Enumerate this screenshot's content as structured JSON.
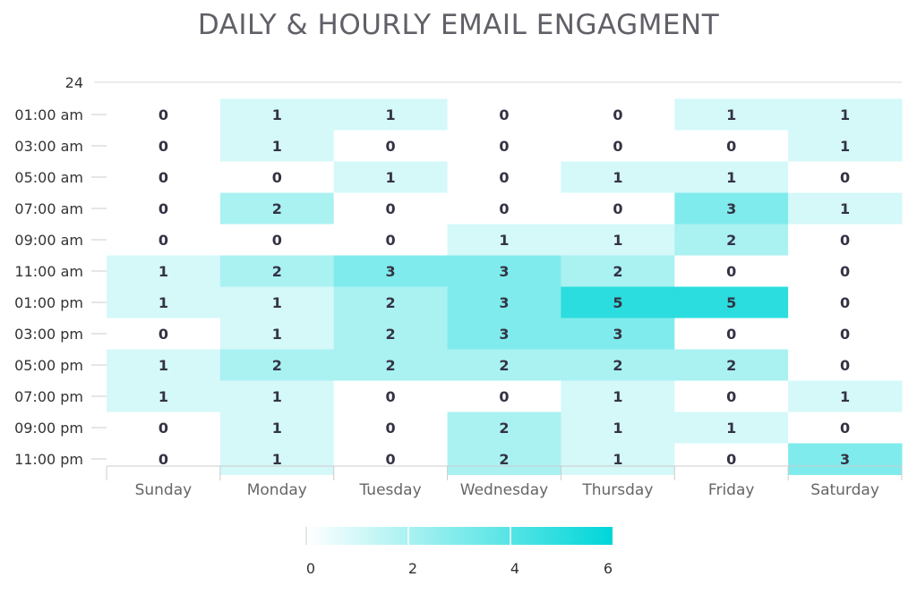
{
  "chart_data": {
    "type": "heatmap",
    "title": "DAILY & HOURLY EMAIL ENGAGMENT",
    "days": [
      "Sunday",
      "Monday",
      "Tuesday",
      "Wednesday",
      "Thursday",
      "Friday",
      "Saturday"
    ],
    "hours_labeled": [
      "01:00 am",
      "03:00 am",
      "05:00 am",
      "07:00 am",
      "09:00 am",
      "11:00 am",
      "01:00 pm",
      "03:00 pm",
      "05:00 pm",
      "07:00 pm",
      "09:00 pm",
      "11:00 pm"
    ],
    "y_top_label": "24",
    "values": [
      [
        0,
        1,
        1,
        0,
        0,
        1,
        1
      ],
      [
        0,
        1,
        0,
        0,
        0,
        0,
        1
      ],
      [
        0,
        0,
        1,
        0,
        1,
        1,
        0
      ],
      [
        0,
        2,
        0,
        0,
        0,
        3,
        1
      ],
      [
        0,
        0,
        0,
        1,
        1,
        2,
        0
      ],
      [
        1,
        2,
        3,
        3,
        2,
        0,
        0
      ],
      [
        1,
        1,
        2,
        3,
        5,
        5,
        0
      ],
      [
        0,
        1,
        2,
        3,
        3,
        0,
        0
      ],
      [
        1,
        2,
        2,
        2,
        2,
        2,
        0
      ],
      [
        1,
        1,
        0,
        0,
        1,
        0,
        1
      ],
      [
        0,
        1,
        0,
        2,
        1,
        1,
        0
      ],
      [
        0,
        1,
        0,
        2,
        1,
        0,
        3
      ]
    ],
    "colorscale": {
      "min": 0,
      "max": 6,
      "low_color": "#ffffff",
      "high_color": "#00d6d8"
    },
    "legend": {
      "ticks": [
        "0",
        "2",
        "4",
        "6"
      ],
      "placement": "bottom-center"
    }
  }
}
